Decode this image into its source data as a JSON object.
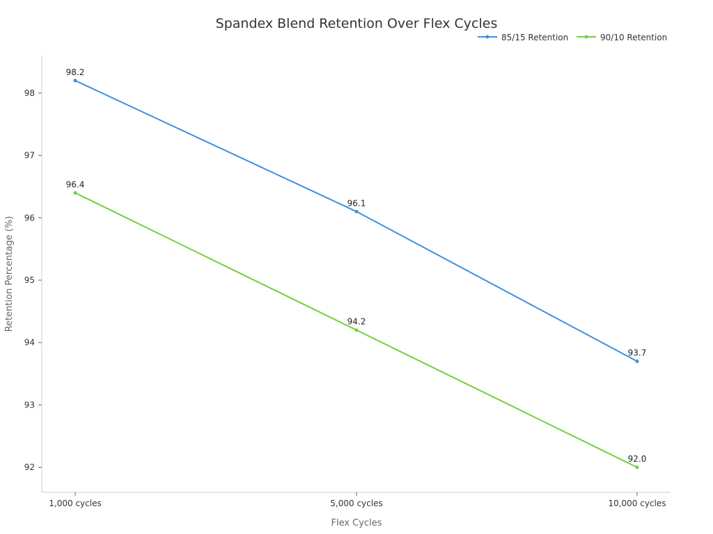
{
  "chart_data": {
    "type": "line",
    "title": "Spandex Blend Retention Over Flex Cycles",
    "xlabel": "Flex Cycles",
    "ylabel": "Retention Percentage (%)",
    "categories": [
      "1,000 cycles",
      "5,000 cycles",
      "10,000 cycles"
    ],
    "ylim": [
      91.6,
      98.6
    ],
    "yticks": [
      92,
      93,
      94,
      95,
      96,
      97,
      98
    ],
    "grid": false,
    "legend_position": "top-right",
    "series": [
      {
        "name": "85/15 Retention",
        "values": [
          98.2,
          96.1,
          93.7
        ],
        "color": "#3b8fe0",
        "labels": [
          "98.2",
          "96.1",
          "93.7"
        ]
      },
      {
        "name": "90/10 Retention",
        "values": [
          96.4,
          94.2,
          92.0
        ],
        "color": "#6fd13a",
        "labels": [
          "96.4",
          "94.2",
          "92.0"
        ]
      }
    ]
  }
}
